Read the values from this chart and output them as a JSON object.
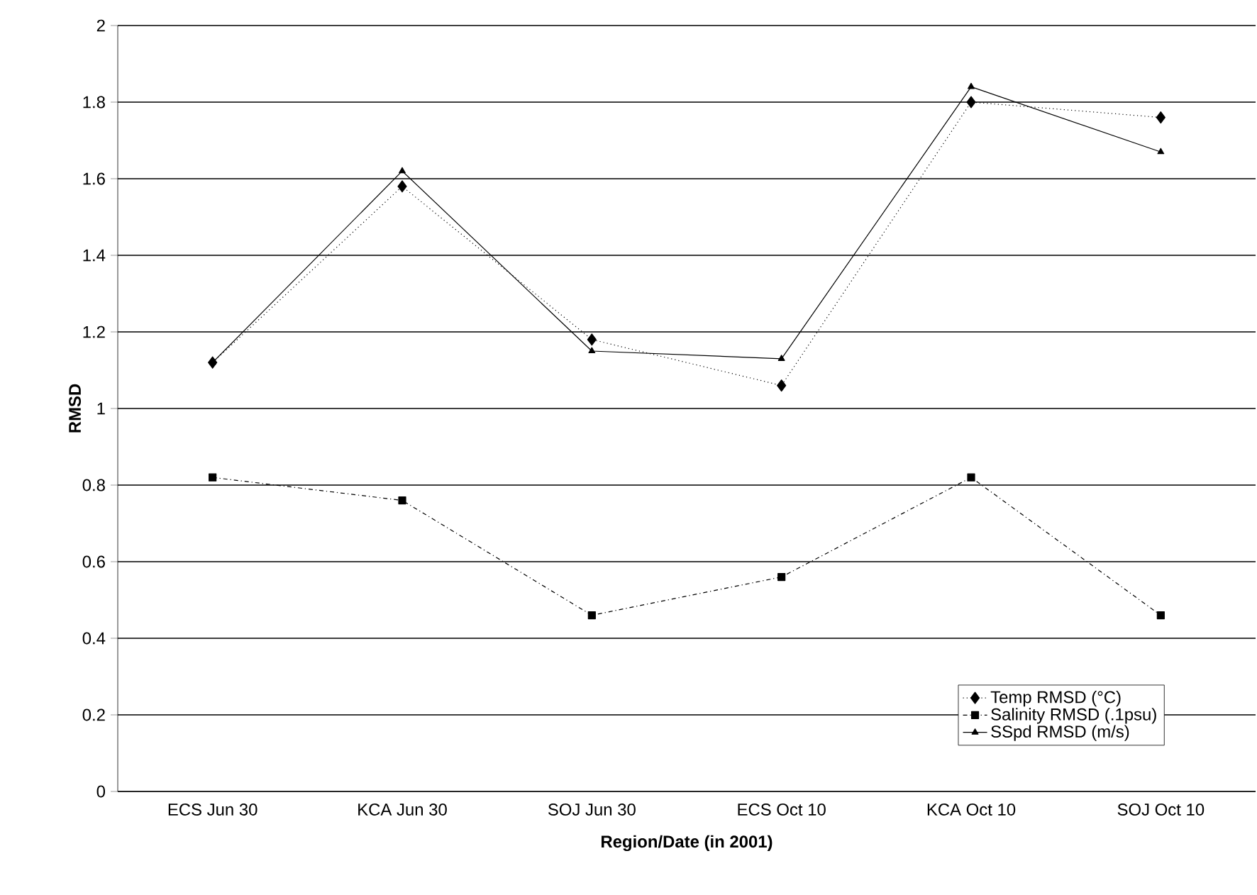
{
  "chart_data": {
    "type": "line",
    "xlabel": "Region/Date (in 2001)",
    "ylabel": "RMSD",
    "categories": [
      "ECS Jun 30",
      "KCA Jun 30",
      "SOJ Jun 30",
      "ECS Oct 10",
      "KCA Oct 10",
      "SOJ Oct 10"
    ],
    "series": [
      {
        "name": "Temp RMSD (°C)",
        "color": "#000000",
        "values": [
          1.12,
          1.58,
          1.18,
          1.06,
          1.8,
          1.76
        ],
        "marker": "diamond",
        "line_style": "dotted"
      },
      {
        "name": "Salinity RMSD (.1psu)",
        "color": "#000000",
        "values": [
          0.82,
          0.76,
          0.46,
          0.56,
          0.82,
          0.46
        ],
        "marker": "square",
        "line_style": "dashdot"
      },
      {
        "name": "SSpd RMSD (m/s)",
        "color": "#000000",
        "values": [
          1.12,
          1.62,
          1.15,
          1.13,
          1.84,
          1.67
        ],
        "marker": "triangle",
        "line_style": "solid"
      }
    ],
    "ylim": [
      0,
      2
    ],
    "yticks": [
      0,
      0.2,
      0.4,
      0.6,
      0.8,
      1,
      1.2,
      1.4,
      1.6,
      1.8,
      2
    ],
    "grid": "y",
    "legend": "bottom right"
  }
}
